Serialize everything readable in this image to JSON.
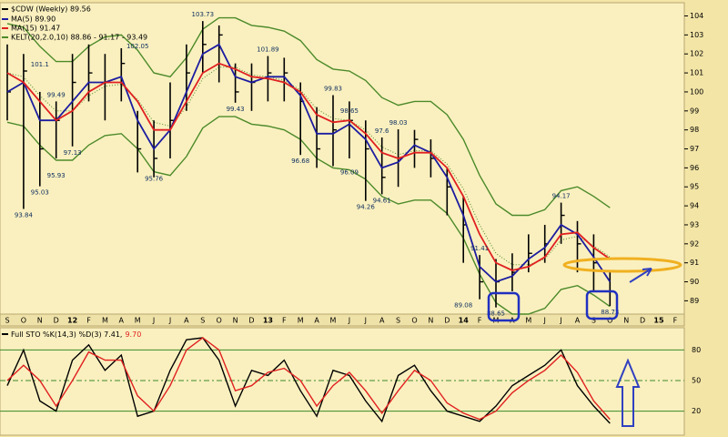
{
  "chart_data": [
    {
      "type": "ohlc",
      "title": "$CDW (Weekly) 89.56",
      "categories": [
        "S",
        "O",
        "N",
        "D",
        "12",
        "F",
        "M",
        "A",
        "M",
        "J",
        "J",
        "A",
        "S",
        "O",
        "N",
        "D",
        "13",
        "F",
        "M",
        "A",
        "M",
        "J",
        "J",
        "A",
        "S",
        "O",
        "N",
        "D",
        "14",
        "F",
        "M",
        "A",
        "M",
        "J",
        "J",
        "A",
        "S",
        "O",
        "N",
        "D",
        "15",
        "F"
      ],
      "high": [
        102.5,
        102,
        100,
        99.5,
        102,
        102.5,
        102,
        102.3,
        99,
        98.5,
        100.5,
        102.5,
        103.73,
        103.5,
        101.5,
        101.5,
        101.89,
        101.8,
        100.5,
        99.2,
        99.83,
        99.5,
        98.5,
        97.6,
        98.03,
        98,
        97.5,
        96,
        94.5,
        91.41,
        91.2,
        91.5,
        92.5,
        93,
        94.17,
        93.2,
        92.5,
        90.5,
        null,
        null,
        null,
        null
      ],
      "low": [
        98.5,
        93.84,
        95.03,
        96.5,
        97.13,
        99.5,
        98.5,
        99.5,
        95.76,
        95.5,
        96.5,
        99,
        101,
        100.5,
        99.43,
        99,
        99.5,
        99.5,
        96.68,
        96,
        96.09,
        96.5,
        94.26,
        94.61,
        95,
        96,
        95.5,
        93.5,
        91,
        89.08,
        88.65,
        89.5,
        90.5,
        91,
        92,
        90.5,
        89.5,
        88.73,
        null,
        null,
        null,
        null
      ],
      "close": [
        100,
        101.1,
        97,
        98.5,
        100.5,
        101,
        100.5,
        101.5,
        97,
        96.5,
        98.5,
        101,
        102.5,
        103,
        100,
        100.5,
        101,
        101,
        99.5,
        97,
        98,
        98.5,
        97,
        95.5,
        96.5,
        97.5,
        96.5,
        95,
        93,
        90,
        90,
        90.5,
        91.5,
        92,
        93.5,
        92,
        91,
        89.5,
        null,
        null,
        null,
        null
      ],
      "price_color": "#000000",
      "series": [
        {
          "name": "MA(5) 89.90",
          "color": "#1c1ca0",
          "values": [
            100,
            100.5,
            98.5,
            98.5,
            99.5,
            100.5,
            100.5,
            100.8,
            98.5,
            97,
            98,
            100,
            102,
            102.5,
            100.8,
            100.5,
            100.8,
            100.8,
            99.8,
            97.8,
            97.8,
            98.3,
            97.5,
            96,
            96.3,
            97.2,
            96.8,
            95.5,
            93.5,
            90.8,
            90,
            90.3,
            91.2,
            91.8,
            93,
            92.5,
            91.3,
            90,
            null,
            null,
            null,
            null
          ]
        },
        {
          "name": "MA(15) 91.47",
          "color": "#e02020",
          "values": [
            101,
            100.5,
            99.5,
            98.5,
            99,
            100,
            100.5,
            100.5,
            99.5,
            98,
            98,
            99.5,
            101,
            101.5,
            101.2,
            100.8,
            100.7,
            100.5,
            100,
            98.8,
            98.4,
            98.5,
            97.8,
            96.8,
            96.5,
            96.8,
            96.8,
            96,
            94.5,
            92.5,
            91,
            90.6,
            90.8,
            91.3,
            92.5,
            92.6,
            91.8,
            91.2,
            null,
            null,
            null,
            null
          ]
        }
      ],
      "kelt": {
        "name": "KELT(20,2.0,10) 88.86 - 91.17 - 93.49",
        "color": "#4c8a2a",
        "upper": [
          103.6,
          103.4,
          102.4,
          101.6,
          101.6,
          102.4,
          102.9,
          103,
          102.2,
          101,
          100.8,
          101.8,
          103.3,
          103.9,
          103.9,
          103.5,
          103.4,
          103.2,
          102.7,
          101.7,
          101.2,
          101.1,
          100.6,
          99.7,
          99.3,
          99.5,
          99.5,
          98.8,
          97.5,
          95.6,
          94.1,
          93.5,
          93.5,
          93.8,
          94.8,
          95,
          94.5,
          93.9,
          null,
          null,
          null,
          null
        ],
        "middle": [
          101,
          100.8,
          99.8,
          99,
          99,
          99.8,
          100.3,
          100.4,
          99.6,
          98.4,
          98.2,
          99.2,
          100.7,
          101.3,
          101.3,
          100.9,
          100.8,
          100.6,
          100.1,
          99.1,
          98.6,
          98.5,
          98,
          97.1,
          96.7,
          96.9,
          96.9,
          96.2,
          94.9,
          93,
          91.5,
          90.9,
          90.9,
          91.2,
          92.2,
          92.4,
          91.9,
          91.3,
          null,
          null,
          null,
          null
        ],
        "lower": [
          98.4,
          98.2,
          97.2,
          96.4,
          96.4,
          97.2,
          97.7,
          97.8,
          97,
          95.8,
          95.6,
          96.6,
          98.1,
          98.7,
          98.7,
          98.3,
          98.2,
          98,
          97.5,
          96.5,
          96,
          95.9,
          95.4,
          94.5,
          94.1,
          94.3,
          94.3,
          93.6,
          92.3,
          90.4,
          88.9,
          88.3,
          88.3,
          88.6,
          89.6,
          89.8,
          89.3,
          88.7,
          null,
          null,
          null,
          null
        ]
      },
      "annotations": [
        {
          "index": 1,
          "value": 93.84
        },
        {
          "index": 2,
          "value": 101.1
        },
        {
          "index": 3,
          "value": 99.49
        },
        {
          "index": 3,
          "value": 95.93
        },
        {
          "index": 2,
          "value": 95.03
        },
        {
          "index": 4,
          "value": 97.13
        },
        {
          "index": 8,
          "value": 102.05
        },
        {
          "index": 9,
          "value": 95.76
        },
        {
          "index": 12,
          "value": 103.73
        },
        {
          "index": 14,
          "value": 99.43
        },
        {
          "index": 16,
          "value": 101.89
        },
        {
          "index": 18,
          "value": 96.68
        },
        {
          "index": 20,
          "value": 99.83
        },
        {
          "index": 21,
          "value": 98.65
        },
        {
          "index": 21,
          "value": 96.09
        },
        {
          "index": 23,
          "value": 97.6
        },
        {
          "index": 22,
          "value": 94.26
        },
        {
          "index": 23,
          "value": 94.61
        },
        {
          "index": 24,
          "value": 98.03
        },
        {
          "index": 29,
          "value": 91.41
        },
        {
          "index": 28,
          "value": 89.08
        },
        {
          "index": 30,
          "value": 88.65
        },
        {
          "index": 34,
          "value": 94.17
        },
        {
          "index": 37,
          "value": 88.73
        }
      ],
      "ylim": [
        88.3,
        104.6
      ],
      "yticks": [
        89,
        90,
        91,
        92,
        93,
        94,
        95,
        96,
        97,
        98,
        99,
        100,
        101,
        102,
        103,
        104
      ]
    },
    {
      "type": "stochastic",
      "title": "Full STO %K(14,3) %D(3) 7.41,",
      "d_reading": "9.70",
      "series": [
        {
          "color": "#000000",
          "values": [
            45,
            80,
            30,
            20,
            70,
            85,
            60,
            75,
            15,
            20,
            60,
            90,
            92,
            70,
            25,
            60,
            55,
            70,
            40,
            15,
            60,
            55,
            30,
            10,
            55,
            65,
            40,
            20,
            15,
            10,
            25,
            45,
            55,
            65,
            80,
            45,
            25,
            8,
            null,
            null,
            null,
            null
          ]
        },
        {
          "color": "#e02020",
          "values": [
            50,
            65,
            50,
            25,
            50,
            78,
            70,
            70,
            35,
            20,
            45,
            80,
            92,
            80,
            40,
            45,
            58,
            62,
            50,
            25,
            45,
            58,
            40,
            18,
            40,
            60,
            50,
            28,
            18,
            12,
            20,
            38,
            50,
            60,
            75,
            58,
            30,
            12,
            null,
            null,
            null,
            null
          ]
        }
      ],
      "ylim": [
        0,
        100
      ],
      "yticks": [
        20,
        50,
        80
      ]
    }
  ]
}
